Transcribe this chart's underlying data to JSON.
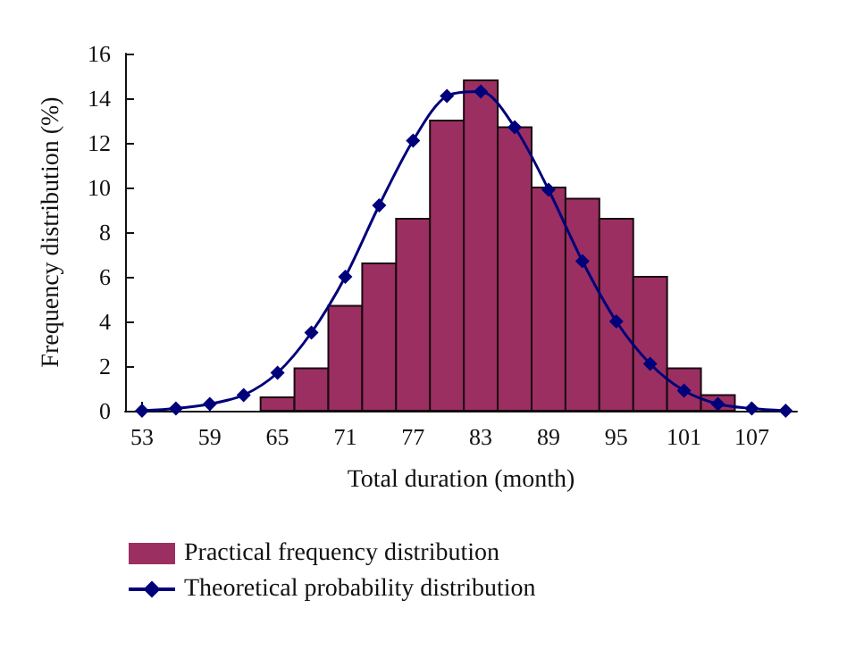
{
  "chart_data": {
    "type": "histogram",
    "xlabel": "Total duration (month)",
    "ylabel": "Frequency distribution (%)",
    "bins": [
      63.5,
      66.5,
      69.5,
      72.5,
      75.5,
      78.5,
      81.5,
      84.5,
      87.5,
      90.5,
      93.5,
      96.5,
      99.5,
      102.5,
      105.5
    ],
    "series": [
      {
        "name": "Practical frequency distribution",
        "color": "#9b2f62",
        "values": [
          0.6,
          1.9,
          4.7,
          6.6,
          8.6,
          13.0,
          14.8,
          12.7,
          10.0,
          9.5,
          8.6,
          6.0,
          1.9,
          0.7
        ]
      },
      {
        "type": "line",
        "name": "Theoretical probability distribution",
        "color": "#00007a",
        "x": [
          53,
          56,
          59,
          62,
          65,
          68,
          71,
          74,
          77,
          80,
          83,
          86,
          89,
          92,
          95,
          98,
          101,
          104,
          107,
          110
        ],
        "values": [
          0.0,
          0.1,
          0.3,
          0.7,
          1.7,
          3.5,
          6.0,
          9.2,
          12.1,
          14.1,
          14.3,
          12.7,
          9.9,
          6.7,
          4.0,
          2.1,
          0.9,
          0.3,
          0.1,
          0.0
        ]
      }
    ],
    "marker": "diamond",
    "line_style": "solid",
    "xlim": [
      51.5,
      111
    ],
    "xticks": [
      53,
      59,
      65,
      71,
      77,
      83,
      89,
      95,
      101,
      107
    ],
    "ylim": [
      0,
      16
    ],
    "yticks": [
      0,
      2,
      4,
      6,
      8,
      10,
      12,
      14,
      16
    ],
    "grid": false,
    "legend": "bottom left"
  }
}
